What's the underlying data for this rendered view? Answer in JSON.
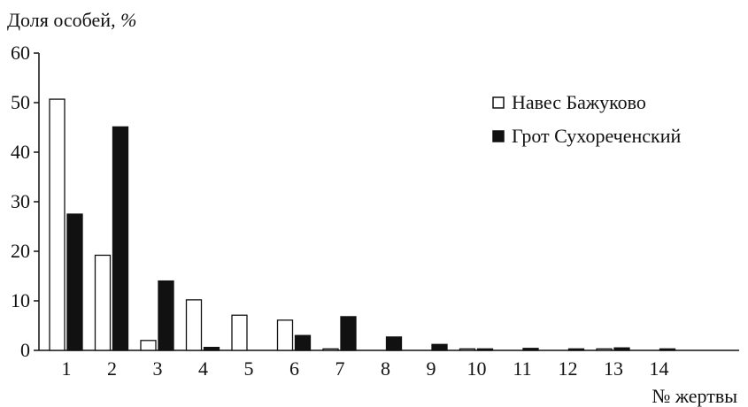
{
  "chart_data": {
    "type": "bar",
    "ylabel": "Доля особей, ",
    "ylabel_unit": "%",
    "xlabel": "№ жертвы",
    "ylim": [
      0,
      60
    ],
    "yticks": [
      0,
      10,
      20,
      30,
      40,
      50,
      60
    ],
    "categories": [
      "1",
      "2",
      "3",
      "4",
      "5",
      "6",
      "7",
      "8",
      "9",
      "10",
      "11",
      "12",
      "13",
      "14"
    ],
    "series": [
      {
        "name": "Навес Бажуково",
        "fill": "#ffffff",
        "stroke": "#111111",
        "values": [
          50.7,
          19.2,
          2.0,
          10.2,
          7.1,
          6.1,
          0.3,
          0,
          0,
          0.3,
          0,
          0,
          0.3,
          0
        ]
      },
      {
        "name": "Грот Сухореченский",
        "fill": "#111111",
        "stroke": "#111111",
        "values": [
          27.5,
          45.1,
          14.0,
          0.6,
          0,
          3.0,
          6.8,
          2.7,
          1.2,
          0.3,
          0.4,
          0.3,
          0.5,
          0.3
        ]
      }
    ],
    "grid": false,
    "legend_position": "top-right"
  }
}
